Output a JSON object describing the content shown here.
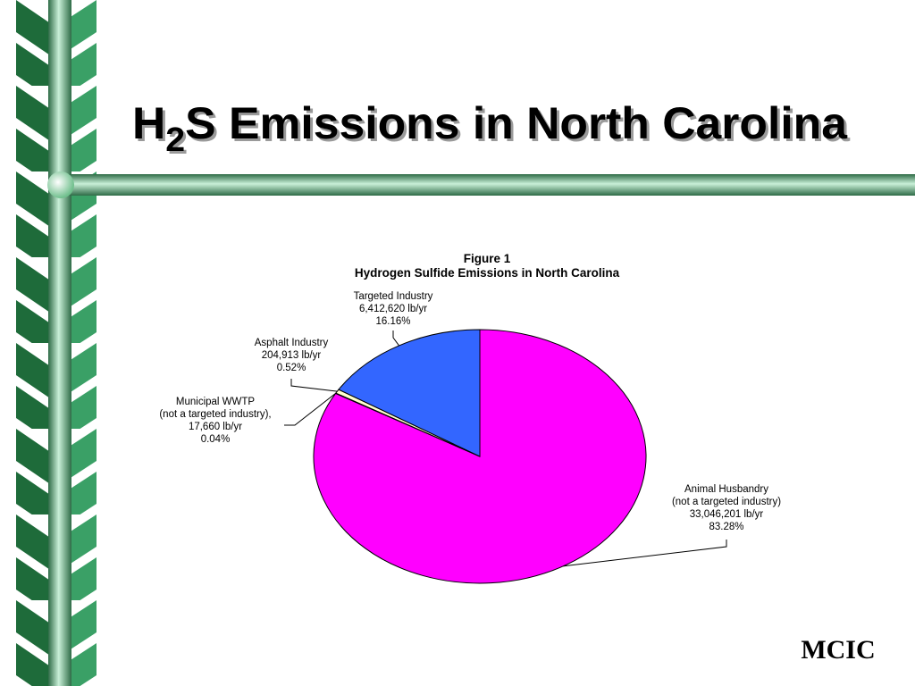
{
  "slide": {
    "title": {
      "before": "H",
      "sub": "2",
      "after": "S Emissions in North Carolina"
    },
    "footer": "MCIC"
  },
  "chart_data": {
    "type": "pie",
    "title": "Figure 1",
    "subtitle": "Hydrogen Sulfide Emissions in North Carolina",
    "categories": [
      "Animal Husbandry",
      "Municipal WWTP",
      "Asphalt Industry",
      "Targeted Industry"
    ],
    "category_notes": [
      "(not a targeted industry)",
      "(not a targeted industry),",
      null,
      null
    ],
    "values": [
      33046201,
      17660,
      204913,
      6412620
    ],
    "value_labels": [
      "33,046,201 lb/yr",
      "17,660 lb/yr",
      "204,913 lb/yr",
      "6,412,620 lb/yr"
    ],
    "percents": [
      83.28,
      0.04,
      0.52,
      16.16
    ],
    "percent_labels": [
      "83.28%",
      "0.04%",
      "0.52%",
      "16.16%"
    ],
    "colors": [
      "#ff00ff",
      "#ffffff",
      "#ffffcc",
      "#3366ff"
    ]
  }
}
